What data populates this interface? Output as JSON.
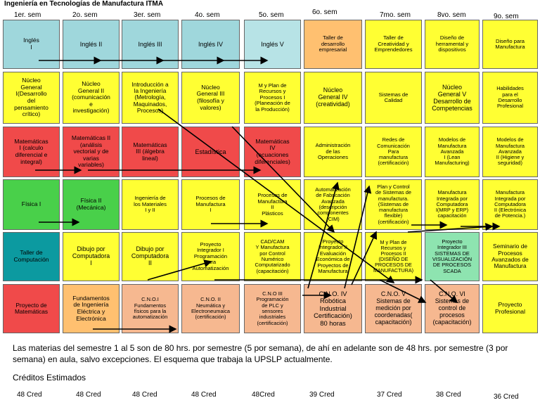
{
  "title": "Ingeniería en Tecnologías de Manufactura ITMA",
  "semesters": [
    "1er. sem",
    "2o. sem",
    "3er. sem",
    "4o. sem",
    "5o. sem",
    "6o. sem",
    "7mo. sem",
    "8vo. sem",
    "9o. sem"
  ],
  "colors": {
    "ingles": "#9fd7dc",
    "nucleo": "#ffff33",
    "matematicas": "#f04a4a",
    "fisica": "#49d04a",
    "computacion": "#0c9aa0",
    "proyecto": "#f04a4a",
    "optativa": "#ffc070",
    "cno": "#f6b890",
    "manufactura": "#ffff33",
    "integrador": "#8ee4b0",
    "ingles_light": "#b7e3e6"
  },
  "rows": [
    [
      "Inglés\nI",
      "Inglés II",
      "Inglés III",
      "Inglés IV",
      "Inglés V",
      "Taller de\ndesarrollo\nempresarial",
      "Taller de\nCreatividad y\nEmprendedores",
      "Diseño de\nherramental y\ndispositivos",
      "Diseño para\nManufactura"
    ],
    [
      "Núcleo\nGeneral\nI(Desarrollo\ndel\npensamiento\ncrítico)",
      "Núcleo\nGeneral II\n(comunicación\ne\ninvestigación)",
      "Introducción a\nla Ingeniería\n(Metrología,\nMaquinados,\nProcesos)",
      "Núcleo\nGeneral III\n(filosofía y\nvalores)",
      "M y Plan de\nRecursos y\nProcesos I\n(Planeación de\nla Producción)",
      "Núcleo\nGeneral IV\n(creatividad)",
      "Sistemas de\nCalidad",
      "Núcleo\nGeneral V\nDesarrollo de\nCompetencias",
      "Habilidades\npara el\nDesarrollo\nProfesional"
    ],
    [
      "Matemáticas\nI (calculo\ndiferencial e\nintegral)",
      "Matemáticas II\n(análisis\nvectorial y de\nvarias\nvariables)",
      "Matemáticas\nIII (álgebra\nlineal)",
      "Estadística",
      "Matemáticas\nIV\n(ecuaciones\ndiferenciales)",
      "Administración\nde las\nOperaciones",
      "Redes de\nComunicación\nPara\nmanufactura\n(certificación)",
      "Modelos de\nManufactura\nAvanzada\nI (Lean\nManufacturing)",
      "Modelos de\nManufactura\nAvanzada\nII (Higiene y\nseguridad)"
    ],
    [
      "Física I",
      "Física II\n(Mecánica)",
      "Ingeniería de\nlos Materiales\nI y II",
      "Procesos de\nManufactura\nI",
      "Procesos de\nManufactura\nII\nPlásticos",
      "Automatización\nde Fabricación\nAvanzada\n(descripción\ncomponentes\n(CIM)",
      "Plan y Control\nde Sistemas de\nmanufactura.\n(Sistemas de\nmanufactura\nflexible)\n(certificación)",
      "Manufactura\nIntegrada por\nComputadora\nI(MRP y ERP)\ncapacitación",
      "Manufactura\nIntegrada por\nComputadora\nII (Electrónica\nde Potencia.)"
    ],
    [
      "Taller de\nComputación",
      "Dibujo por\nComputadora\nI",
      "Dibujo por\nComputadora\nII",
      "Proyecto\nIntegrador I\nProgramación\npara\nAutomatización",
      "CAD/CAM\nY Manufactura\npor Control\nNumérico\nComputarizado\n(capacitación)",
      "Proyecto\nIntegrador II\nEvaluación\nEconómica de\nProyectos de\nManufactura",
      "M y Plan de\nRecursos y\nProcesos II\n(DISEÑO DE\nPROCESOS DE\nMANUFACTURA)",
      "Proyecto\nIntegrador III\nSISTEMAS DE\nVISUALIZACIÓN\nDE PROCESOS\nSCADA",
      "Seminario de\nProcesos\nAvanzados de\nManufactura"
    ],
    [
      "Proyecto de\nMatemáticas",
      "Fundamentos\nde Ingeniería\nEléctrica y\nElectrónica",
      "C.N.O.I\nFundamentos\nfísicos para la\nautomatización",
      "C.N.O. II\nNeumática y\nElectroneumaica\n(certificación)",
      "C.N.O III\nProgramación\nde PLC y\nsensores\nindustriales\n(certificación)",
      "C.N.O. IV\nRobótica\nIndustrial\nCertificación)\n80 horas",
      "C.N.O. V\nSistemas de\nmedición por\ncoordenadas(\ncapacitación)",
      "C.N.O. VI\nSistemas de\ncontrol de\nprocesos\n(capacitación)",
      "Proyecto\nProfesional"
    ]
  ],
  "note": "Las materias del semestre 1 al 5 son de 80 hrs. por semestre (5 por semana), de ahí en adelante son de 48 hrs. por semestre (3 por semana) en aula, salvo excepciones. El esquema que trabaja la UPSLP actualmente.",
  "credits_title": "Créditos Estimados",
  "credits": [
    "48 Cred",
    "48 Cred",
    "48 Cred",
    "48 Cred",
    "48Cred",
    "39 Cred",
    "37 Cred",
    "38 Cred",
    "36 Cred"
  ]
}
